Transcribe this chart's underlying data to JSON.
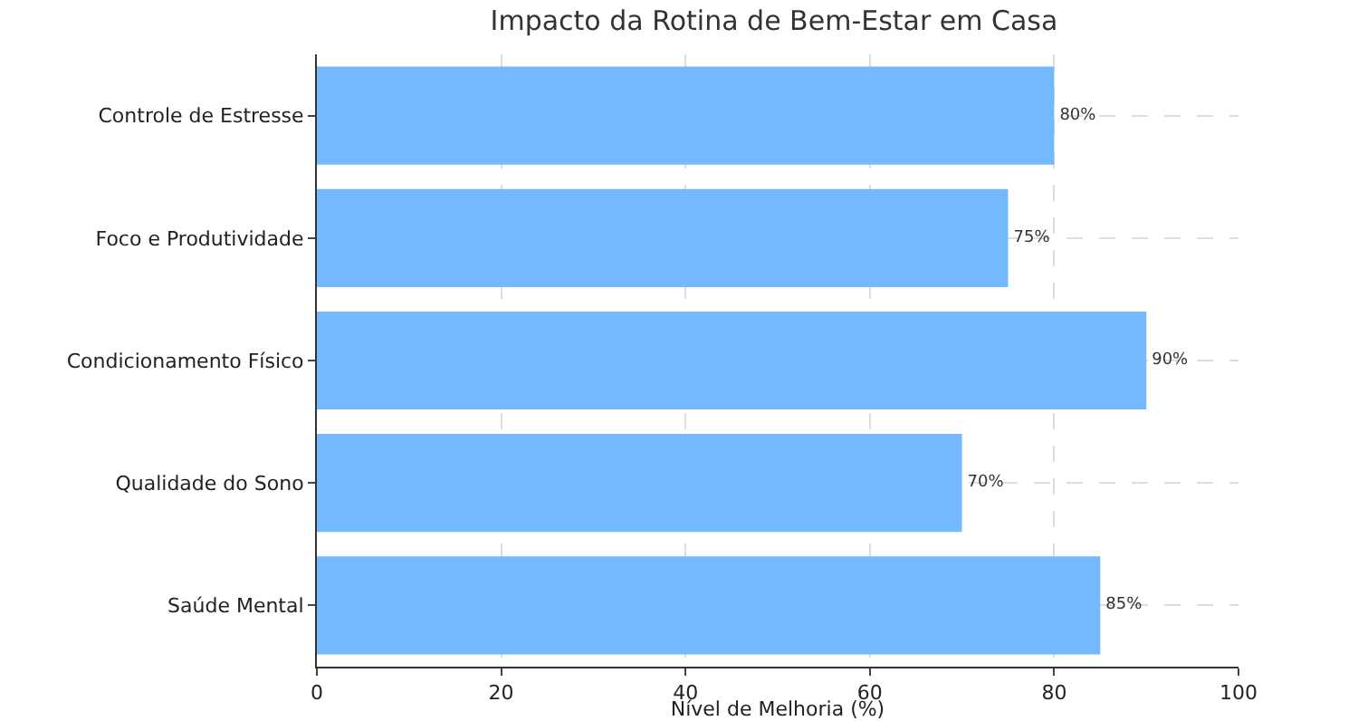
{
  "chart_data": {
    "type": "bar",
    "orientation": "horizontal",
    "title": "Impacto da Rotina de Bem-Estar em Casa",
    "xlabel": "Nível de Melhoria (%)",
    "categories": [
      "Controle de Estresse",
      "Foco e Produtividade",
      "Condicionamento Físico",
      "Qualidade do Sono",
      "Saúde Mental"
    ],
    "values": [
      80,
      75,
      90,
      70,
      85
    ],
    "value_labels": [
      "80%",
      "75%",
      "90%",
      "70%",
      "85%"
    ],
    "color": "#74b9ff",
    "xlim": [
      0,
      100
    ],
    "xticks": [
      0,
      20,
      40,
      60,
      80,
      100
    ],
    "grid": true
  }
}
